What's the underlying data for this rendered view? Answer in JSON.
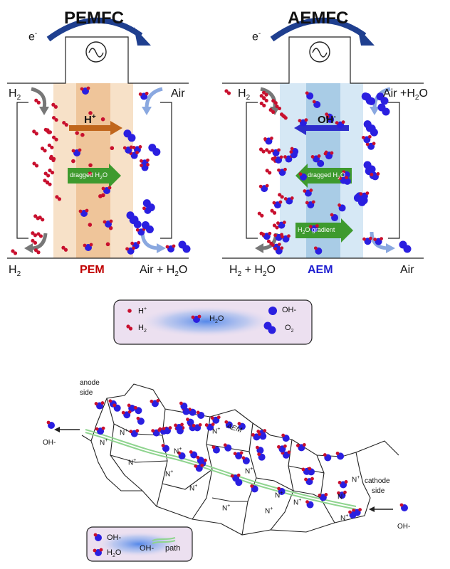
{
  "pemfc": {
    "title": "PEMFC",
    "electron": "e",
    "electron_sup": "-",
    "inlet_left": "H",
    "inlet_left_sub": "2",
    "inlet_right": "Air",
    "outlet_left": "H",
    "outlet_left_sub": "2",
    "outlet_right": "Air + H",
    "outlet_right_sub": "2",
    "outlet_right_tail": "O",
    "membrane": "PEM",
    "ion": "H",
    "ion_sup": "+",
    "arrow_label": "dragged H",
    "arrow_label_sub": "2",
    "arrow_label_tail": "O",
    "colors": {
      "membrane_outer": "#f7e1c8",
      "membrane_inner": "#efc59a",
      "membrane_color_label": "#c00000"
    }
  },
  "aemfc": {
    "title": "AEMFC",
    "electron": "e",
    "electron_sup": "-",
    "inlet_left": "H",
    "inlet_left_sub": "2",
    "inlet_right": "Air +H",
    "inlet_right_sub": "2",
    "inlet_right_tail": "O",
    "outlet_left": "H",
    "outlet_left_sub": "2",
    "outlet_left_tail": " + H",
    "outlet_left_sub2": "2",
    "outlet_left_tail2": "O",
    "outlet_right": "Air",
    "membrane": "AEM",
    "ion": "OH",
    "ion_sup": "-",
    "arrow1_label": "dragged H",
    "arrow1_sub": "2",
    "arrow1_tail": "O",
    "arrow2_label": "H",
    "arrow2_sub": "2",
    "arrow2_tail": "O gradient",
    "colors": {
      "membrane_outer": "#d6e8f5",
      "membrane_inner": "#a9cce6",
      "membrane_color_label": "#1f1fd0"
    }
  },
  "legend1": {
    "h_plus": "H",
    "h_plus_sup": "+",
    "h2": "H",
    "h2_sub": "2",
    "h2o": "H",
    "h2o_sub": "2",
    "h2o_tail": "O",
    "oh": "OH-",
    "o2": "O",
    "o2_sub": "2"
  },
  "bottom": {
    "anode": "anode",
    "anode2": "side",
    "aem": "AEM",
    "cathode": "cathode",
    "cathode2": "side",
    "oh_left": "OH-",
    "oh_right": "OH-",
    "nplus": "N",
    "nplus_sup": "+"
  },
  "legend2": {
    "oh": "OH-",
    "h2o": "H",
    "h2o_sub": "2",
    "h2o_tail": "O",
    "path_a": "OH-",
    "path_b": "path"
  },
  "colors": {
    "blue_ball": "#2a1fe0",
    "red_ball": "#c8102e",
    "arrow_orange": "#c0661c",
    "arrow_green": "#3e9a2e",
    "arrow_blue": "#2d2dcc",
    "wire_arrow": "#1f3f8f",
    "gray_arrow": "#777777",
    "lightblue_arrow": "#8aa8e0",
    "legend_bg": "#ece0f0"
  }
}
